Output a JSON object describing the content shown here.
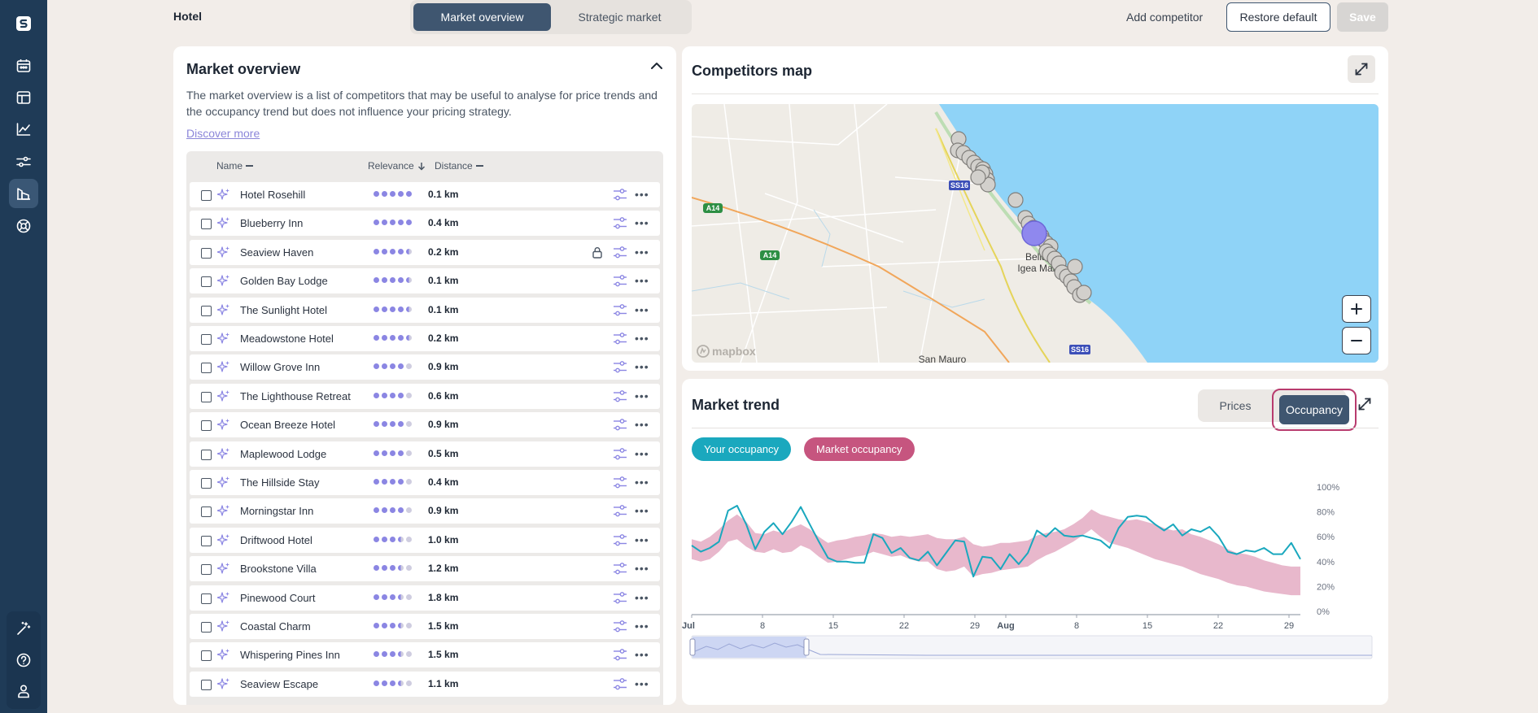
{
  "app": {
    "hotel_name": "Hotel"
  },
  "top_tabs": [
    {
      "label": "Market overview",
      "active": true
    },
    {
      "label": "Strategic market",
      "active": false
    }
  ],
  "top_actions": {
    "add_competitor": "Add competitor",
    "restore_default": "Restore default",
    "save": "Save"
  },
  "sidebar": {
    "items": [
      {
        "icon": "logo-icon"
      },
      {
        "icon": "calendar-icon"
      },
      {
        "icon": "layout-icon"
      },
      {
        "icon": "chart-icon"
      },
      {
        "icon": "sliders-icon"
      },
      {
        "icon": "market-icon",
        "active": true
      },
      {
        "icon": "lifebuoy-icon"
      }
    ],
    "bottom": [
      {
        "icon": "magic-wand-icon"
      },
      {
        "icon": "help-icon"
      },
      {
        "icon": "user-icon"
      }
    ]
  },
  "market_overview": {
    "title": "Market overview",
    "description": "The market overview is a list of competitors that may be useful to analyse for price trends and the occupancy trend but does not influence your pricing strategy.",
    "discover_more": "Discover more",
    "columns": {
      "name": "Name",
      "relevance": "Relevance",
      "distance": "Distance"
    },
    "competitors": [
      {
        "name": "Hotel Rosehill",
        "relevance": 5,
        "distance": "0.1 km",
        "locked": false
      },
      {
        "name": "Blueberry Inn",
        "relevance": 5,
        "distance": "0.4 km",
        "locked": false
      },
      {
        "name": "Seaview Haven",
        "relevance": 4.5,
        "distance": "0.2 km",
        "locked": true
      },
      {
        "name": "Golden Bay Lodge",
        "relevance": 4.5,
        "distance": "0.1 km",
        "locked": false
      },
      {
        "name": "The Sunlight Hotel",
        "relevance": 4.5,
        "distance": "0.1 km",
        "locked": false
      },
      {
        "name": "Meadowstone Hotel",
        "relevance": 4.5,
        "distance": "0.2 km",
        "locked": false
      },
      {
        "name": "Willow Grove Inn",
        "relevance": 4,
        "distance": "0.9 km",
        "locked": false
      },
      {
        "name": "The Lighthouse Retreat",
        "relevance": 4,
        "distance": "0.6 km",
        "locked": false
      },
      {
        "name": "Ocean Breeze Hotel",
        "relevance": 4,
        "distance": "0.9 km",
        "locked": false
      },
      {
        "name": "Maplewood Lodge",
        "relevance": 4,
        "distance": "0.5 km",
        "locked": false
      },
      {
        "name": "The Hillside Stay",
        "relevance": 4,
        "distance": "0.4 km",
        "locked": false
      },
      {
        "name": "Morningstar Inn",
        "relevance": 4,
        "distance": "0.9 km",
        "locked": false
      },
      {
        "name": "Driftwood Hotel",
        "relevance": 3.5,
        "distance": "1.0 km",
        "locked": false
      },
      {
        "name": "Brookstone Villa",
        "relevance": 3.5,
        "distance": "1.2 km",
        "locked": false
      },
      {
        "name": "Pinewood Court",
        "relevance": 3.5,
        "distance": "1.8 km",
        "locked": false
      },
      {
        "name": "Coastal Charm",
        "relevance": 3.5,
        "distance": "1.5 km",
        "locked": false
      },
      {
        "name": "Whispering Pines Inn",
        "relevance": 3.5,
        "distance": "1.5 km",
        "locked": false
      },
      {
        "name": "Seaview Escape",
        "relevance": 3.5,
        "distance": "1.1 km",
        "locked": false
      }
    ]
  },
  "competitors_map": {
    "title": "Competitors map",
    "attribution": "mapbox",
    "road_labels": [
      "SS16",
      "A14",
      "A14",
      "SS16"
    ],
    "place_labels": [
      "Bellaria-",
      "Igea Marina",
      "San Mauro"
    ],
    "colors": {
      "sea": "#8fd3f7",
      "hotel_marker": "#8f88ee",
      "competitor_marker": "#d2d0cc"
    }
  },
  "market_trend": {
    "title": "Market trend",
    "toggle": [
      {
        "label": "Prices",
        "active": false
      },
      {
        "label": "Occupancy",
        "active": true
      }
    ],
    "legend": [
      {
        "label": "Your occupancy",
        "color": "#1aa8be"
      },
      {
        "label": "Market occupancy",
        "color": "#c6557f"
      }
    ]
  },
  "chart_data": {
    "type": "line",
    "x_ticks": [
      "Jul",
      "8",
      "15",
      "22",
      "29",
      "Aug",
      "8",
      "15",
      "22",
      "29"
    ],
    "y_ticks": [
      "0%",
      "20%",
      "40%",
      "60%",
      "80%",
      "100%"
    ],
    "ylim": [
      0,
      100
    ],
    "series": [
      {
        "name": "Your occupancy",
        "color": "#1aa8be",
        "values": [
          53,
          48,
          51,
          56,
          81,
          85,
          70,
          50,
          64,
          71,
          62,
          72,
          84,
          70,
          56,
          43,
          40,
          40,
          39,
          39,
          62,
          59,
          47,
          51,
          43,
          41,
          48,
          37,
          47,
          57,
          56,
          28,
          44,
          43,
          34,
          46,
          38,
          47,
          65,
          60,
          67,
          61,
          60,
          61,
          59,
          57,
          51,
          67,
          76,
          77,
          76,
          70,
          65,
          70,
          61,
          66,
          64,
          68,
          60,
          48,
          46,
          49,
          48,
          51,
          46,
          46,
          55,
          42
        ]
      },
      {
        "name": "Market occupancy",
        "band": true,
        "color": "#e8b8cc",
        "upper": [
          58,
          56,
          60,
          66,
          73,
          78,
          72,
          63,
          62,
          65,
          63,
          67,
          70,
          66,
          60,
          55,
          57,
          58,
          60,
          61,
          63,
          62,
          60,
          61,
          60,
          61,
          62,
          59,
          58,
          58,
          60,
          54,
          52,
          53,
          55,
          55,
          56,
          57,
          61,
          63,
          64,
          66,
          70,
          75,
          82,
          78,
          76,
          74,
          73,
          74,
          72,
          70,
          67,
          65,
          66,
          62,
          60,
          57,
          54,
          50,
          47,
          46,
          44,
          41,
          39,
          37,
          36,
          36
        ],
        "lower": [
          42,
          40,
          42,
          48,
          56,
          58,
          52,
          48,
          47,
          50,
          47,
          48,
          53,
          50,
          44,
          39,
          40,
          42,
          44,
          45,
          48,
          46,
          44,
          45,
          42,
          40,
          40,
          34,
          32,
          33,
          36,
          28,
          30,
          31,
          33,
          34,
          35,
          36,
          41,
          45,
          48,
          52,
          56,
          61,
          66,
          60,
          55,
          53,
          51,
          48,
          45,
          42,
          40,
          38,
          36,
          33,
          30,
          28,
          26,
          23,
          21,
          20,
          18,
          16,
          15,
          14,
          13,
          13
        ]
      }
    ]
  }
}
